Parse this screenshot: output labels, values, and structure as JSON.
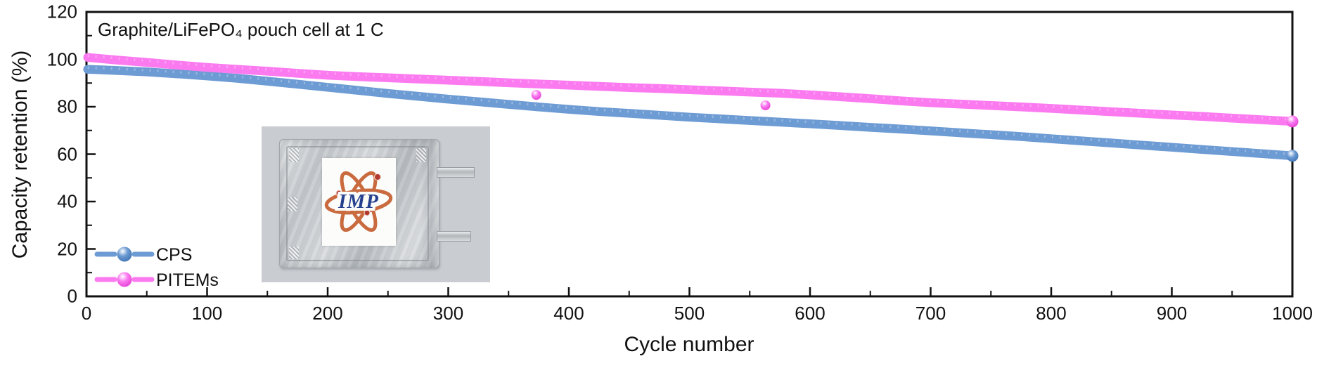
{
  "chart_data": {
    "type": "scatter",
    "title": "Graphite/LiFePO₄ pouch cell at 1 C",
    "xlabel": "Cycle number",
    "ylabel": "Capacity retention (%)",
    "xlim": [
      0,
      1000
    ],
    "ylim": [
      0,
      120
    ],
    "x_major_ticks": [
      0,
      100,
      200,
      300,
      400,
      500,
      600,
      700,
      800,
      900,
      1000
    ],
    "x_minor_step": 50,
    "y_major_ticks": [
      0,
      20,
      40,
      60,
      80,
      100,
      120
    ],
    "y_minor_step": 10,
    "grid": "off",
    "legend_position": "lower-left-inside",
    "frame": "full-box",
    "series": [
      {
        "name": "CPS",
        "color": "#6d9bd3",
        "color_dark": "#3f74b4",
        "points": [
          [
            1,
            95.8
          ],
          [
            25,
            95.3
          ],
          [
            50,
            94.7
          ],
          [
            75,
            93.9
          ],
          [
            100,
            93
          ],
          [
            125,
            92
          ],
          [
            150,
            90.8
          ],
          [
            175,
            89.5
          ],
          [
            200,
            88.2
          ],
          [
            225,
            86.9
          ],
          [
            250,
            85.6
          ],
          [
            275,
            84.4
          ],
          [
            300,
            83.2
          ],
          [
            325,
            82.1
          ],
          [
            350,
            81
          ],
          [
            375,
            79.9
          ],
          [
            400,
            78.9
          ],
          [
            425,
            78
          ],
          [
            450,
            77.2
          ],
          [
            475,
            76.4
          ],
          [
            500,
            75.6
          ],
          [
            525,
            74.9
          ],
          [
            550,
            74.2
          ],
          [
            575,
            73.5
          ],
          [
            600,
            72.8
          ],
          [
            625,
            72.1
          ],
          [
            650,
            71.3
          ],
          [
            675,
            70.6
          ],
          [
            700,
            69.8
          ],
          [
            725,
            69
          ],
          [
            750,
            68.2
          ],
          [
            775,
            67.4
          ],
          [
            800,
            66.5
          ],
          [
            825,
            65.6
          ],
          [
            850,
            64.7
          ],
          [
            875,
            63.8
          ],
          [
            900,
            62.9
          ],
          [
            925,
            62
          ],
          [
            950,
            61.1
          ],
          [
            975,
            60.2
          ],
          [
            1000,
            59.3
          ]
        ],
        "outliers": []
      },
      {
        "name": "PITEMs",
        "color": "#fb7af0",
        "color_dark": "#e43fd4",
        "points": [
          [
            1,
            100.8
          ],
          [
            25,
            99.7
          ],
          [
            50,
            98.7
          ],
          [
            75,
            97.6
          ],
          [
            100,
            96.6
          ],
          [
            125,
            95.8
          ],
          [
            150,
            95
          ],
          [
            175,
            94.1
          ],
          [
            200,
            93.3
          ],
          [
            225,
            92.7
          ],
          [
            250,
            92.2
          ],
          [
            275,
            91.7
          ],
          [
            300,
            91.2
          ],
          [
            325,
            90.7
          ],
          [
            350,
            90.1
          ],
          [
            375,
            89.6
          ],
          [
            400,
            89.1
          ],
          [
            425,
            88.6
          ],
          [
            450,
            88.1
          ],
          [
            475,
            87.7
          ],
          [
            500,
            87.2
          ],
          [
            525,
            86.7
          ],
          [
            550,
            86.2
          ],
          [
            575,
            85.7
          ],
          [
            600,
            85
          ],
          [
            625,
            84.2
          ],
          [
            650,
            83.4
          ],
          [
            675,
            82.5
          ],
          [
            700,
            81.7
          ],
          [
            725,
            81.1
          ],
          [
            750,
            80.5
          ],
          [
            775,
            79.9
          ],
          [
            800,
            79.3
          ],
          [
            825,
            78.6
          ],
          [
            850,
            77.9
          ],
          [
            875,
            77.2
          ],
          [
            900,
            76.5
          ],
          [
            925,
            75.9
          ],
          [
            950,
            75.2
          ],
          [
            975,
            74.5
          ],
          [
            1000,
            73.8
          ]
        ],
        "outliers": [
          [
            373,
            85
          ],
          [
            563,
            80.6
          ]
        ]
      }
    ],
    "axis_color": "#111111"
  },
  "inset": {
    "logo_text": "IMP",
    "colors": {
      "photo_bg": "#c9cdd2",
      "pouch": "#c3c7cb",
      "seal": "#b2b6ba",
      "label_bg": "#fcfcfa",
      "orbit": "#c96a3f",
      "logo_text_color": "#27418f",
      "dot": "#b23a2e",
      "tab": "#c8cbce"
    }
  }
}
